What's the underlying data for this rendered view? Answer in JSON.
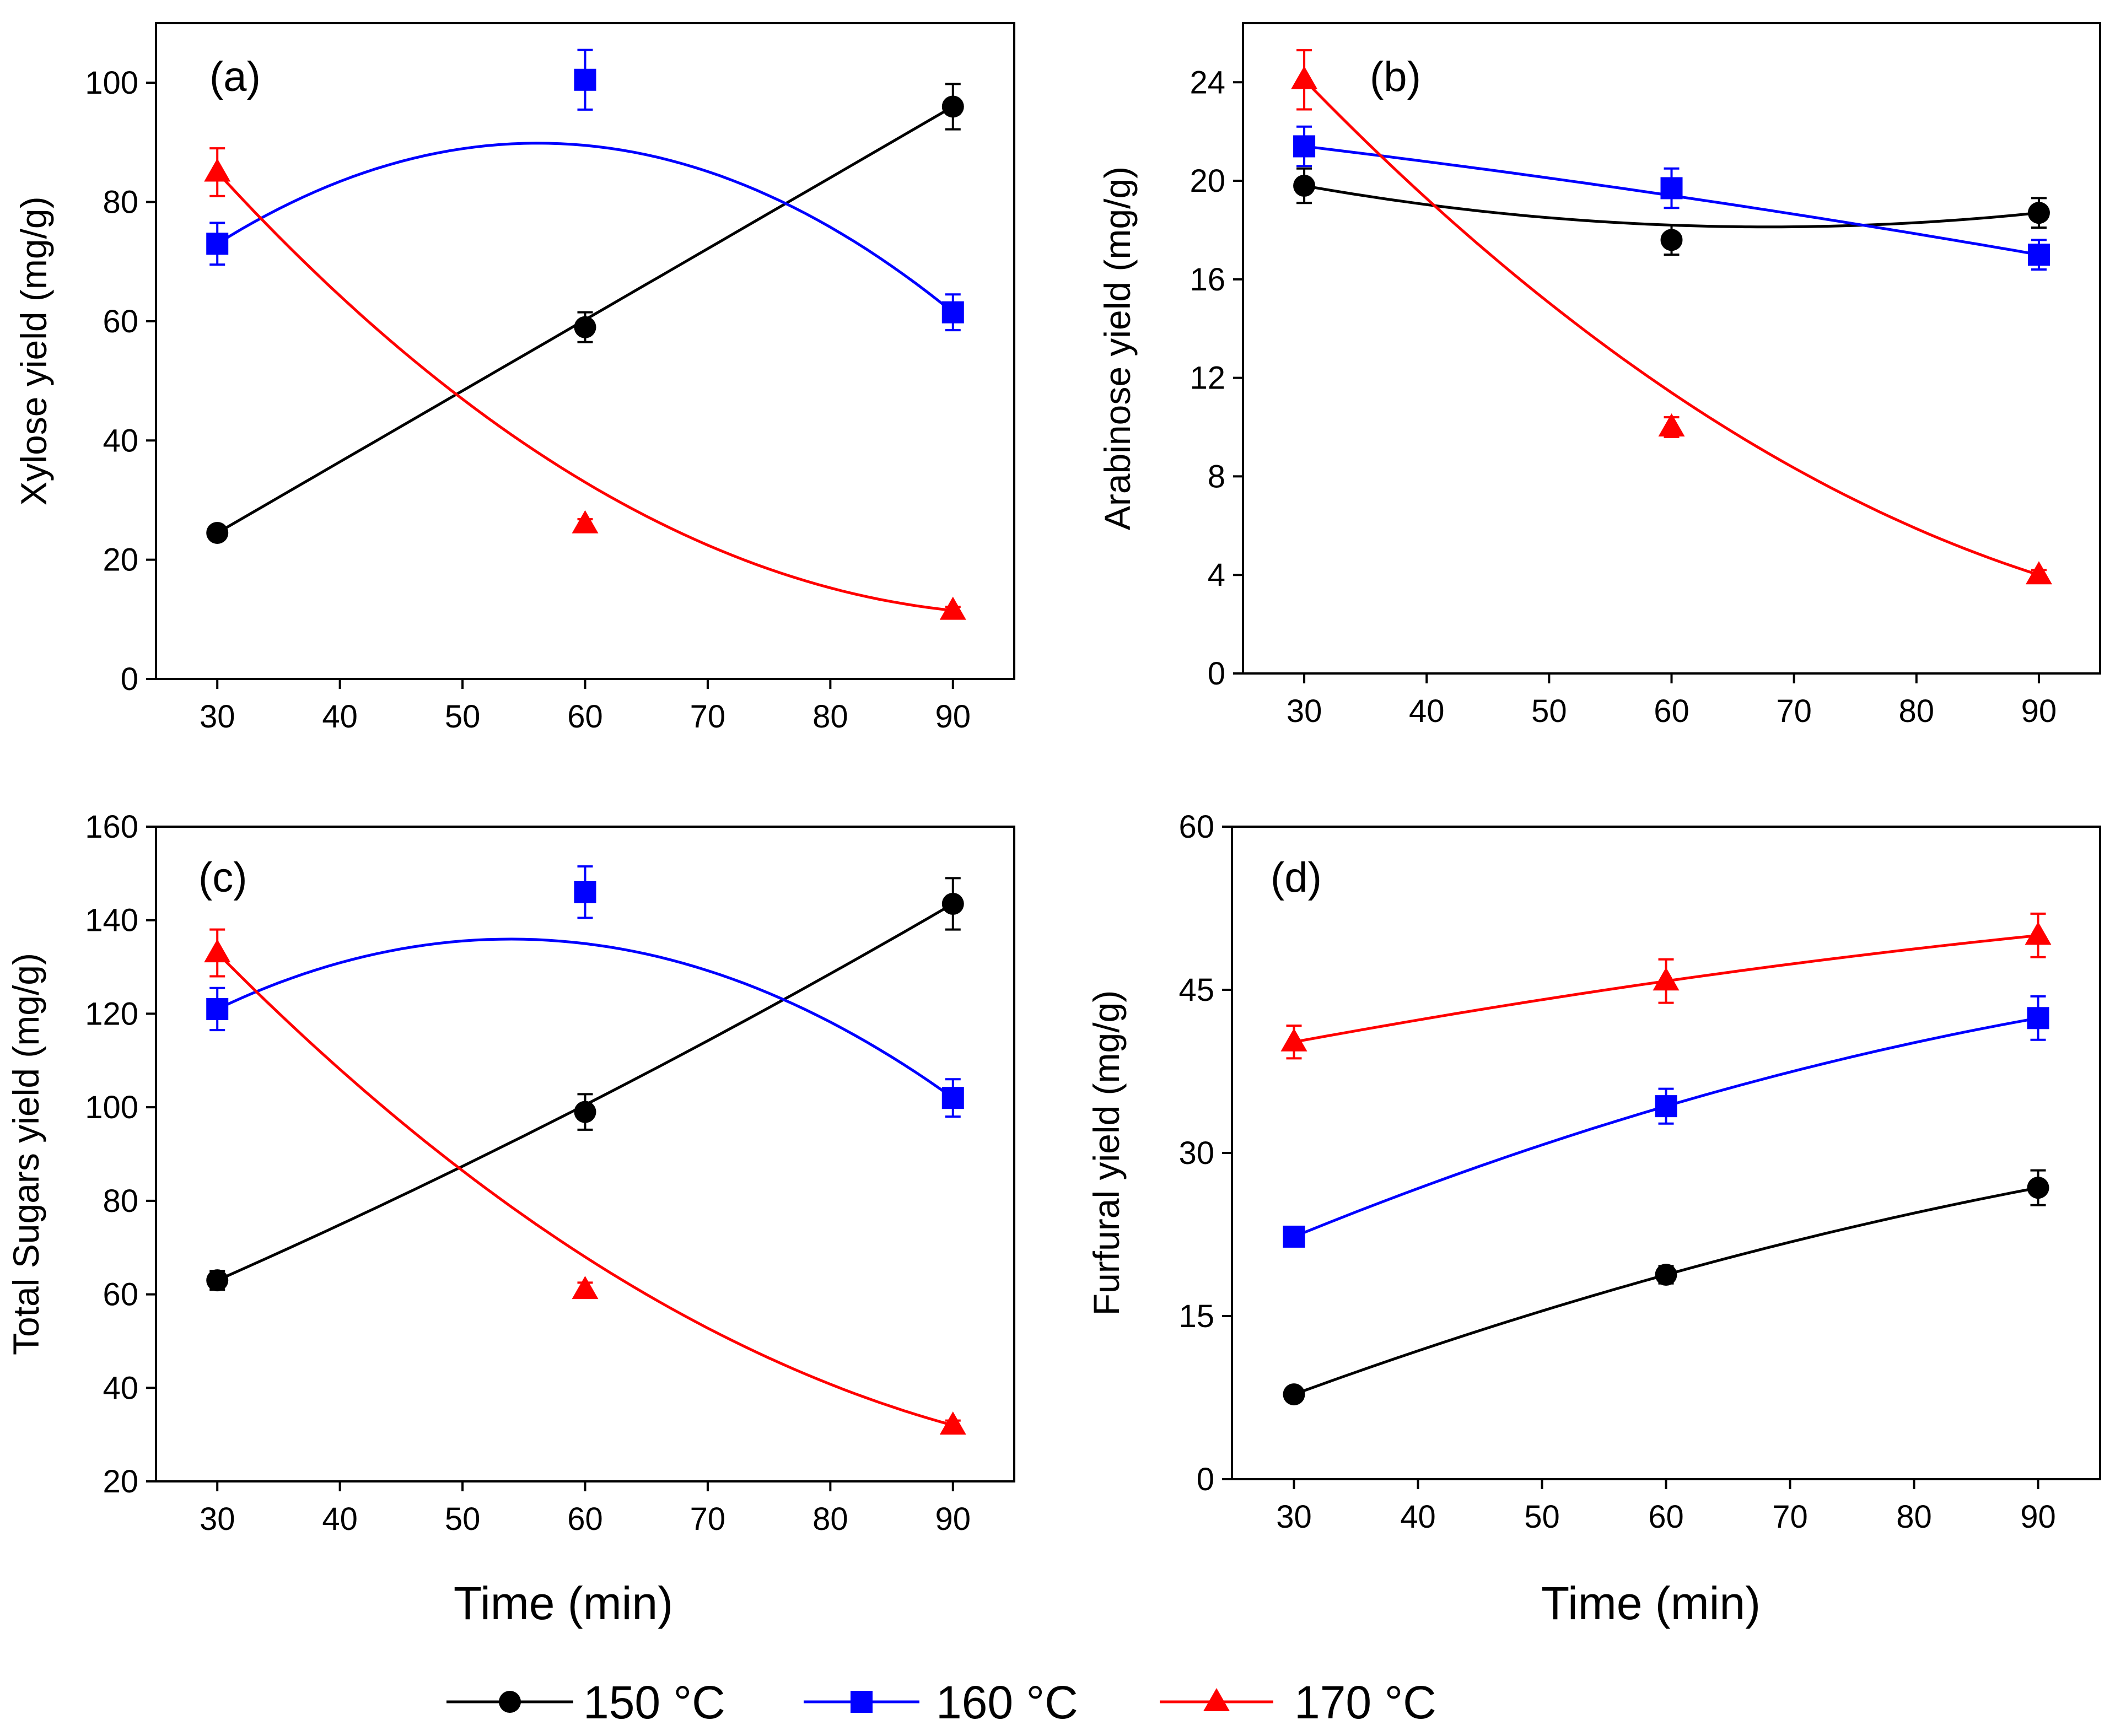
{
  "colors": {
    "150": "#000000",
    "160": "#0000ff",
    "170": "#ff0000",
    "axis": "#000000",
    "background": "#ffffff"
  },
  "legend": {
    "items": [
      {
        "label": "150 °C",
        "value": "150",
        "unit": "C",
        "marker": "circle",
        "color": "#000000"
      },
      {
        "label": "160 °C",
        "value": "160",
        "unit": "C",
        "marker": "square",
        "color": "#0000ff"
      },
      {
        "label": "170 °C",
        "value": "170",
        "unit": "C",
        "marker": "triangle",
        "color": "#ff0000"
      }
    ]
  },
  "xaxis_title": "Time (min)",
  "chart_data": [
    {
      "type": "line",
      "panel": "(a)",
      "title": "",
      "xlabel": "",
      "ylabel": "Xylose yield (mg/g)",
      "x": [
        30,
        60,
        90
      ],
      "xlim": [
        25,
        95
      ],
      "ylim": [
        0,
        110
      ],
      "xticks": [
        30,
        40,
        50,
        60,
        70,
        80,
        90
      ],
      "yticks": [
        0,
        20,
        40,
        60,
        80,
        100
      ],
      "series": [
        {
          "name": "150 °C",
          "marker": "circle",
          "color": "#000000",
          "values": [
            24.5,
            59,
            96
          ],
          "errors": [
            0.8,
            2.5,
            3.8
          ],
          "fit": [
            24.5,
            60.25,
            96
          ]
        },
        {
          "name": "160 °C",
          "marker": "square",
          "color": "#0000ff",
          "values": [
            73,
            100.5,
            61.5
          ],
          "errors": [
            3.5,
            5.0,
            3.0
          ],
          "fit": [
            73,
            89.5,
            61.5
          ]
        },
        {
          "name": "170 °C",
          "marker": "triangle",
          "color": "#ff0000",
          "values": [
            85,
            26,
            11.5
          ],
          "errors": [
            4.0,
            0.8,
            0.6
          ],
          "fit": [
            85,
            33,
            11.5
          ]
        }
      ]
    },
    {
      "type": "line",
      "panel": "(b)",
      "title": "",
      "xlabel": "",
      "ylabel": "Arabinose yield (mg/g)",
      "x": [
        30,
        60,
        90
      ],
      "xlim": [
        25,
        95
      ],
      "ylim": [
        0,
        26.4
      ],
      "xticks": [
        30,
        40,
        50,
        60,
        70,
        80,
        90
      ],
      "yticks": [
        0,
        4,
        8,
        12,
        16,
        20,
        24
      ],
      "series": [
        {
          "name": "150 °C",
          "marker": "circle",
          "color": "#000000",
          "values": [
            19.8,
            17.6,
            18.7
          ],
          "errors": [
            0.7,
            0.6,
            0.6
          ],
          "fit": [
            19.8,
            18.2,
            18.7
          ]
        },
        {
          "name": "160 °C",
          "marker": "square",
          "color": "#0000ff",
          "values": [
            21.4,
            19.7,
            17.0
          ],
          "errors": [
            0.8,
            0.8,
            0.6
          ],
          "fit": [
            21.4,
            19.4,
            17.0
          ]
        },
        {
          "name": "170 °C",
          "marker": "triangle",
          "color": "#ff0000",
          "values": [
            24.1,
            10.0,
            4.0
          ],
          "errors": [
            1.2,
            0.4,
            0.2
          ],
          "fit": [
            24.1,
            11.4,
            4.0
          ]
        }
      ]
    },
    {
      "type": "line",
      "panel": "(c)",
      "title": "",
      "xlabel": "Time (min)",
      "ylabel": "Total Sugars yield (mg/g)",
      "x": [
        30,
        60,
        90
      ],
      "xlim": [
        25,
        95
      ],
      "ylim": [
        20,
        160
      ],
      "xticks": [
        30,
        40,
        50,
        60,
        70,
        80,
        90
      ],
      "yticks": [
        20,
        40,
        60,
        80,
        100,
        120,
        140,
        160
      ],
      "series": [
        {
          "name": "150 °C",
          "marker": "circle",
          "color": "#000000",
          "values": [
            63,
            99,
            143.5
          ],
          "errors": [
            2.0,
            3.8,
            5.5
          ],
          "fit": [
            63,
            100.5,
            143.5
          ]
        },
        {
          "name": "160 °C",
          "marker": "square",
          "color": "#0000ff",
          "values": [
            121,
            146,
            102
          ],
          "errors": [
            4.5,
            5.5,
            4.0
          ],
          "fit": [
            121,
            135,
            102
          ]
        },
        {
          "name": "170 °C",
          "marker": "triangle",
          "color": "#ff0000",
          "values": [
            133,
            61,
            32
          ],
          "errors": [
            5.0,
            1.5,
            1.0
          ],
          "fit": [
            133,
            68,
            32
          ]
        }
      ]
    },
    {
      "type": "line",
      "panel": "(d)",
      "title": "",
      "xlabel": "Time (min)",
      "ylabel": "Furfural yield (mg/g)",
      "x": [
        30,
        60,
        90
      ],
      "xlim": [
        25,
        95
      ],
      "ylim": [
        0,
        60
      ],
      "xticks": [
        30,
        40,
        50,
        60,
        70,
        80,
        90
      ],
      "yticks": [
        0,
        15,
        30,
        45,
        60
      ],
      "series": [
        {
          "name": "150 °C",
          "marker": "circle",
          "color": "#000000",
          "values": [
            7.8,
            18.8,
            26.8
          ],
          "errors": [
            0.5,
            0.8,
            1.6
          ],
          "fit": [
            7.8,
            18.8,
            26.8
          ]
        },
        {
          "name": "160 °C",
          "marker": "square",
          "color": "#0000ff",
          "values": [
            22.3,
            34.3,
            42.4
          ],
          "errors": [
            0.8,
            1.6,
            2.0
          ],
          "fit": [
            22.3,
            34.3,
            42.4
          ]
        },
        {
          "name": "170 °C",
          "marker": "triangle",
          "color": "#ff0000",
          "values": [
            40.2,
            45.8,
            50.0
          ],
          "errors": [
            1.5,
            2.0,
            2.0
          ],
          "fit": [
            40.2,
            45.8,
            50.0
          ]
        }
      ]
    }
  ]
}
